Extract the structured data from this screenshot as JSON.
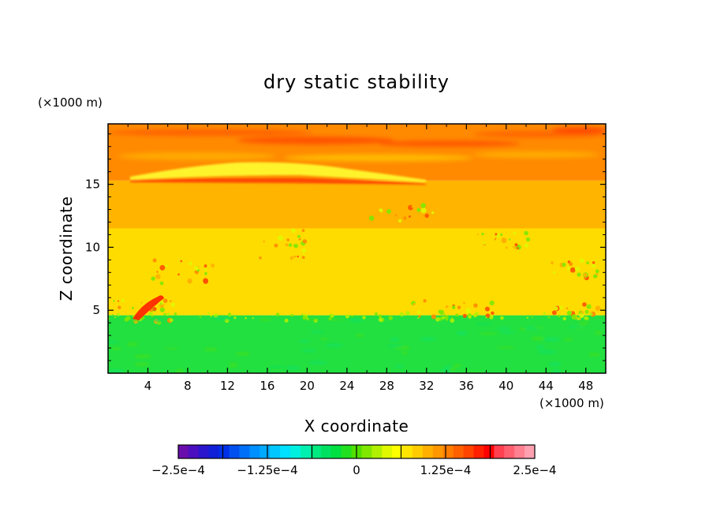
{
  "chart_data": {
    "type": "heatmap",
    "title": "dry static stability",
    "xlabel": "X coordinate",
    "ylabel": "Z coordinate",
    "x_unit": "(×1000 m)",
    "y_unit": "(×1000 m)",
    "xlim": [
      0,
      50
    ],
    "ylim": [
      0,
      19.8
    ],
    "xticks": [
      4,
      8,
      12,
      16,
      20,
      24,
      28,
      32,
      36,
      40,
      44,
      48
    ],
    "yticks": [
      5,
      10,
      15
    ],
    "grid": false,
    "colorbar": {
      "range": [
        -0.00025,
        0.00025
      ],
      "tick_values": [
        -0.00025,
        -0.000125,
        0,
        0.000125,
        0.00025
      ],
      "tick_labels": [
        "−2.5e−4",
        "−1.25e−4",
        "0",
        "1.25e−4",
        "2.5e−4"
      ],
      "colors": [
        "#6a0dad",
        "#4b0fc0",
        "#2a16cc",
        "#1020d8",
        "#0030e8",
        "#0050f0",
        "#0070f8",
        "#0090ff",
        "#00aaff",
        "#00c8ff",
        "#00e0ff",
        "#00f0e0",
        "#00f0b0",
        "#00ea80",
        "#00e060",
        "#00e040",
        "#20e020",
        "#50e000",
        "#80e800",
        "#b0f000",
        "#e0f800",
        "#ffff00",
        "#ffe400",
        "#ffcc00",
        "#ffb000",
        "#ff9800",
        "#ff7c00",
        "#ff6000",
        "#ff4400",
        "#ff2000",
        "#ff0000",
        "#ff4050",
        "#ff6070",
        "#ff8090",
        "#ffa0b0"
      ]
    },
    "layers": [
      {
        "z_range": [
          0,
          4.6
        ],
        "value": 5e-05,
        "color": "#22e040"
      },
      {
        "z_range": [
          4.6,
          11.5
        ],
        "value": 0.000155,
        "color": "#ffdc00"
      },
      {
        "z_range": [
          11.5,
          15.3
        ],
        "value": 0.00018,
        "color": "#ffb400"
      },
      {
        "z_range": [
          15.3,
          19.8
        ],
        "value": 0.00021,
        "color": "#ff8a00"
      }
    ]
  }
}
